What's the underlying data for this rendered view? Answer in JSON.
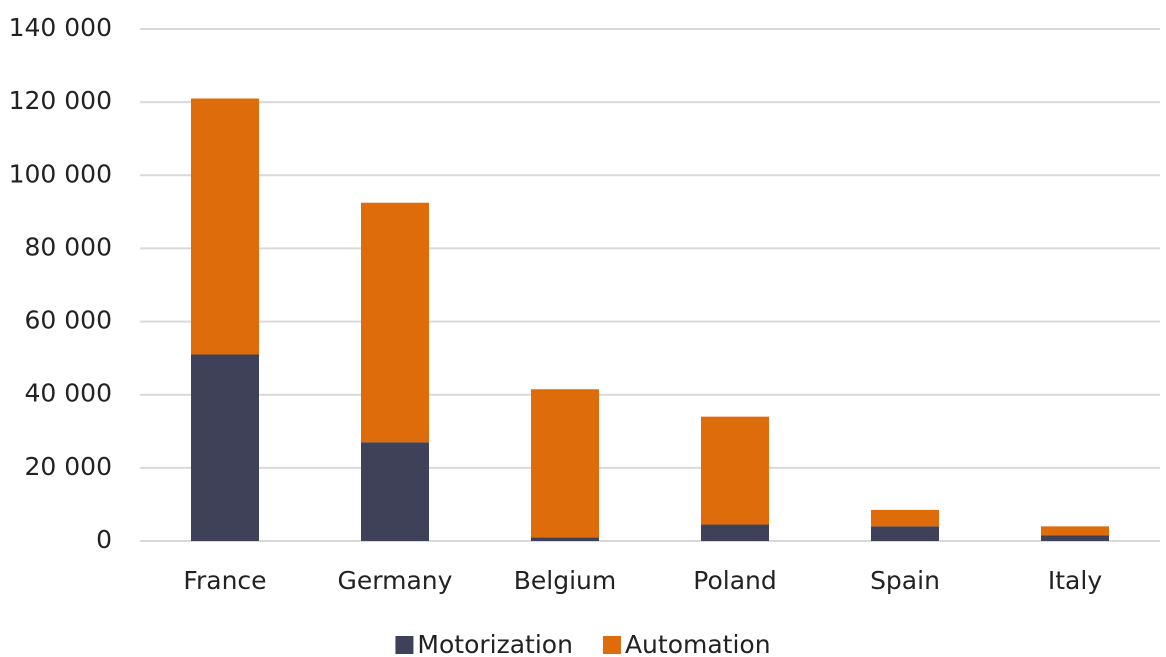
{
  "chart_data": {
    "type": "stacked_bar",
    "categories": [
      "France",
      "Germany",
      "Belgium",
      "Poland",
      "Spain",
      "Italy"
    ],
    "series": [
      {
        "name": "Motorization",
        "color": "#3f4159",
        "values": [
          51000,
          27000,
          1000,
          4500,
          4000,
          1500
        ]
      },
      {
        "name": "Automation",
        "color": "#df6c0a",
        "values": [
          70000,
          65500,
          40500,
          29500,
          4500,
          2500
        ]
      }
    ],
    "ylim": [
      0,
      140000
    ],
    "yticks": [
      {
        "value": 0,
        "label": "0"
      },
      {
        "value": 20000,
        "label": "20 000"
      },
      {
        "value": 40000,
        "label": "40 000"
      },
      {
        "value": 60000,
        "label": "60 000"
      },
      {
        "value": 80000,
        "label": "80 000"
      },
      {
        "value": 100000,
        "label": "100 000"
      },
      {
        "value": 120000,
        "label": "120 000"
      },
      {
        "value": 140000,
        "label": "140 000"
      }
    ],
    "grid": true,
    "legend": "bottom"
  }
}
